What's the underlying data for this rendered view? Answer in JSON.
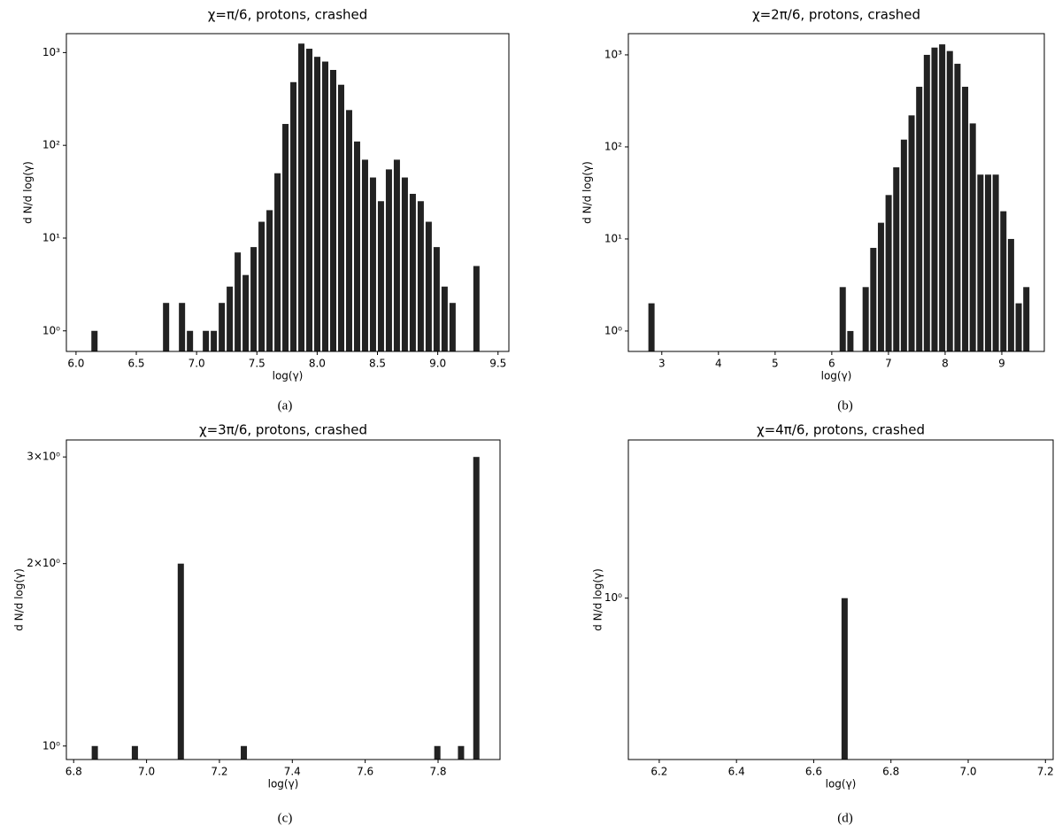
{
  "chart_data": [
    {
      "type": "bar",
      "title": "χ=π/6, protons, crashed",
      "x_label": "log(γ)",
      "y_label": "d N/d log(γ)",
      "caption": "(a)",
      "log_y": true,
      "color": "#222222",
      "x": [
        6.153,
        6.747,
        6.879,
        6.945,
        7.077,
        7.143,
        7.209,
        7.275,
        7.341,
        7.407,
        7.473,
        7.539,
        7.605,
        7.671,
        7.737,
        7.803,
        7.869,
        7.935,
        8.001,
        8.067,
        8.133,
        8.199,
        8.265,
        8.331,
        8.397,
        8.463,
        8.529,
        8.595,
        8.661,
        8.727,
        8.793,
        8.859,
        8.925,
        8.991,
        9.057,
        9.123,
        9.321
      ],
      "values": [
        1,
        2,
        2,
        1,
        1,
        1,
        2,
        3,
        7,
        4,
        8,
        15,
        20,
        50,
        170,
        480,
        1250,
        1100,
        900,
        800,
        650,
        450,
        240,
        110,
        70,
        45,
        25,
        55,
        70,
        45,
        30,
        25,
        15,
        8,
        3,
        2,
        5
      ],
      "xlim": [
        5.92,
        9.59
      ],
      "ylim": [
        0.6,
        1600
      ],
      "xticks": [
        {
          "value": 6,
          "label": "6.0"
        },
        6.5,
        {
          "value": 7,
          "label": "7.0"
        },
        7.5,
        {
          "value": 8,
          "label": "8.0"
        },
        8.5,
        {
          "value": 9,
          "label": "9.0"
        },
        9.5
      ],
      "yticks": [
        {
          "value": 1,
          "label": "10⁰"
        },
        {
          "value": 10,
          "label": "10¹"
        },
        {
          "value": 100,
          "label": "10²"
        },
        {
          "value": 1000,
          "label": "10³"
        }
      ]
    },
    {
      "type": "bar",
      "title": "χ=2π/6, protons, crashed",
      "x_label": "log(γ)",
      "y_label": "d N/d log(γ)",
      "caption": "(b)",
      "log_y": true,
      "color": "#222222",
      "x": [
        2.818,
        6.193,
        6.328,
        6.598,
        6.733,
        6.868,
        7.003,
        7.138,
        7.273,
        7.408,
        7.543,
        7.678,
        7.813,
        7.948,
        8.083,
        8.218,
        8.353,
        8.488,
        8.623,
        8.758,
        8.893,
        9.028,
        9.163,
        9.298,
        9.433
      ],
      "values": [
        2,
        3,
        1,
        3,
        8,
        15,
        30,
        60,
        120,
        220,
        450,
        1000,
        1200,
        1300,
        1100,
        800,
        450,
        180,
        50,
        50,
        50,
        20,
        10,
        2,
        3
      ],
      "xlim": [
        2.41,
        9.75
      ],
      "ylim": [
        0.6,
        1700
      ],
      "xticks": [
        3,
        4,
        5,
        6,
        7,
        8,
        9
      ],
      "yticks": [
        {
          "value": 1,
          "label": "10⁰"
        },
        {
          "value": 10,
          "label": "10¹"
        },
        {
          "value": 100,
          "label": "10²"
        },
        {
          "value": 1000,
          "label": "10³"
        }
      ]
    },
    {
      "type": "bar",
      "title": "χ=3π/6, protons, crashed",
      "x_label": "log(γ)",
      "y_label": "d N/d log(γ)",
      "caption": "(c)",
      "log_y": true,
      "color": "#222222",
      "x": [
        6.858,
        6.968,
        7.094,
        7.267,
        7.798,
        7.863,
        7.905
      ],
      "values": [
        1,
        1,
        2,
        1,
        1,
        1,
        3
      ],
      "xlim": [
        6.78,
        7.97
      ],
      "ylim": [
        0.95,
        3.2
      ],
      "xticks": [
        6.8,
        {
          "value": 7,
          "label": "7.0"
        },
        7.2,
        7.4,
        7.6,
        7.8
      ],
      "yticks": [
        {
          "value": 1,
          "label": "10⁰"
        },
        {
          "value": 2,
          "label": "2×10⁰"
        },
        {
          "value": 3,
          "label": "3×10⁰"
        }
      ]
    },
    {
      "type": "bar",
      "title": "χ=4π/6, protons, crashed",
      "x_label": "log(γ)",
      "y_label": "d N/d log(γ)",
      "caption": "(d)",
      "log_y": true,
      "color": "#222222",
      "x": [
        6.68
      ],
      "values": [
        1
      ],
      "xlim": [
        6.12,
        7.22
      ],
      "ylim": [
        0.6,
        1.65
      ],
      "xticks": [
        6.2,
        6.4,
        6.6,
        6.8,
        {
          "value": 7,
          "label": "7.0"
        },
        7.2
      ],
      "yticks": [
        {
          "value": 1,
          "label": "10⁰"
        }
      ]
    }
  ]
}
